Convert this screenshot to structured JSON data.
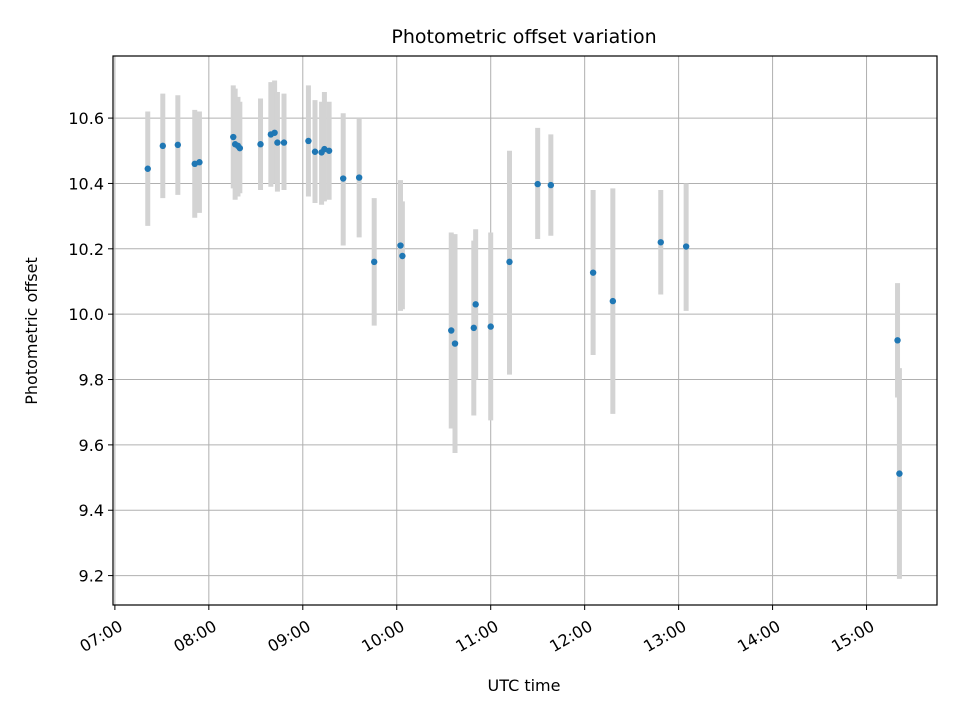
{
  "chart_data": {
    "type": "scatter",
    "title": "Photometric offset variation",
    "xlabel": "UTC time",
    "ylabel": "Photometric offset",
    "x_unit": "hours UTC",
    "xlim": [
      6.98,
      15.75
    ],
    "ylim": [
      9.11,
      10.79
    ],
    "x_ticks": [
      {
        "value": 7,
        "label": "07:00"
      },
      {
        "value": 8,
        "label": "08:00"
      },
      {
        "value": 9,
        "label": "09:00"
      },
      {
        "value": 10,
        "label": "10:00"
      },
      {
        "value": 11,
        "label": "11:00"
      },
      {
        "value": 12,
        "label": "12:00"
      },
      {
        "value": 13,
        "label": "13:00"
      },
      {
        "value": 14,
        "label": "14:00"
      },
      {
        "value": 15,
        "label": "15:00"
      }
    ],
    "y_ticks": [
      {
        "value": 9.2,
        "label": "9.2"
      },
      {
        "value": 9.4,
        "label": "9.4"
      },
      {
        "value": 9.6,
        "label": "9.6"
      },
      {
        "value": 9.8,
        "label": "9.8"
      },
      {
        "value": 10.0,
        "label": "10.0"
      },
      {
        "value": 10.2,
        "label": "10.2"
      },
      {
        "value": 10.4,
        "label": "10.4"
      },
      {
        "value": 10.6,
        "label": "10.6"
      }
    ],
    "grid": true,
    "marker_color": "#1f77b4",
    "errorbar_color": "#d3d3d3",
    "points": [
      {
        "x": 7.35,
        "y": 10.445,
        "ylo": 10.27,
        "yhi": 10.62
      },
      {
        "x": 7.51,
        "y": 10.515,
        "ylo": 10.355,
        "yhi": 10.675
      },
      {
        "x": 7.67,
        "y": 10.518,
        "ylo": 10.365,
        "yhi": 10.67
      },
      {
        "x": 7.85,
        "y": 10.46,
        "ylo": 10.295,
        "yhi": 10.625
      },
      {
        "x": 7.9,
        "y": 10.465,
        "ylo": 10.31,
        "yhi": 10.62
      },
      {
        "x": 8.26,
        "y": 10.542,
        "ylo": 10.385,
        "yhi": 10.7
      },
      {
        "x": 8.28,
        "y": 10.52,
        "ylo": 10.35,
        "yhi": 10.69
      },
      {
        "x": 8.31,
        "y": 10.515,
        "ylo": 10.36,
        "yhi": 10.665
      },
      {
        "x": 8.33,
        "y": 10.508,
        "ylo": 10.37,
        "yhi": 10.65
      },
      {
        "x": 8.55,
        "y": 10.52,
        "ylo": 10.38,
        "yhi": 10.66
      },
      {
        "x": 8.66,
        "y": 10.55,
        "ylo": 10.39,
        "yhi": 10.71
      },
      {
        "x": 8.7,
        "y": 10.555,
        "ylo": 10.4,
        "yhi": 10.715
      },
      {
        "x": 8.73,
        "y": 10.525,
        "ylo": 10.375,
        "yhi": 10.68
      },
      {
        "x": 8.8,
        "y": 10.525,
        "ylo": 10.38,
        "yhi": 10.675
      },
      {
        "x": 9.06,
        "y": 10.53,
        "ylo": 10.36,
        "yhi": 10.7
      },
      {
        "x": 9.13,
        "y": 10.497,
        "ylo": 10.34,
        "yhi": 10.655
      },
      {
        "x": 9.2,
        "y": 10.495,
        "ylo": 10.335,
        "yhi": 10.65
      },
      {
        "x": 9.23,
        "y": 10.505,
        "ylo": 10.345,
        "yhi": 10.68
      },
      {
        "x": 9.28,
        "y": 10.5,
        "ylo": 10.35,
        "yhi": 10.65
      },
      {
        "x": 9.43,
        "y": 10.415,
        "ylo": 10.21,
        "yhi": 10.615
      },
      {
        "x": 9.6,
        "y": 10.418,
        "ylo": 10.235,
        "yhi": 10.6
      },
      {
        "x": 9.76,
        "y": 10.16,
        "ylo": 9.965,
        "yhi": 10.355
      },
      {
        "x": 10.04,
        "y": 10.21,
        "ylo": 10.01,
        "yhi": 10.41
      },
      {
        "x": 10.06,
        "y": 10.178,
        "ylo": 10.015,
        "yhi": 10.345
      },
      {
        "x": 10.58,
        "y": 9.95,
        "ylo": 9.65,
        "yhi": 10.25
      },
      {
        "x": 10.62,
        "y": 9.91,
        "ylo": 9.575,
        "yhi": 10.245
      },
      {
        "x": 10.82,
        "y": 9.958,
        "ylo": 9.69,
        "yhi": 10.225
      },
      {
        "x": 10.84,
        "y": 10.03,
        "ylo": 9.8,
        "yhi": 10.26
      },
      {
        "x": 11.0,
        "y": 9.962,
        "ylo": 9.675,
        "yhi": 10.25
      },
      {
        "x": 11.2,
        "y": 10.16,
        "ylo": 9.815,
        "yhi": 10.5
      },
      {
        "x": 11.5,
        "y": 10.398,
        "ylo": 10.23,
        "yhi": 10.57
      },
      {
        "x": 11.64,
        "y": 10.395,
        "ylo": 10.24,
        "yhi": 10.55
      },
      {
        "x": 12.09,
        "y": 10.127,
        "ylo": 9.875,
        "yhi": 10.38
      },
      {
        "x": 12.3,
        "y": 10.04,
        "ylo": 9.695,
        "yhi": 10.385
      },
      {
        "x": 12.81,
        "y": 10.22,
        "ylo": 10.06,
        "yhi": 10.38
      },
      {
        "x": 13.08,
        "y": 10.207,
        "ylo": 10.01,
        "yhi": 10.4
      },
      {
        "x": 15.33,
        "y": 9.92,
        "ylo": 9.745,
        "yhi": 10.095
      },
      {
        "x": 15.35,
        "y": 9.512,
        "ylo": 9.19,
        "yhi": 9.835
      }
    ]
  }
}
